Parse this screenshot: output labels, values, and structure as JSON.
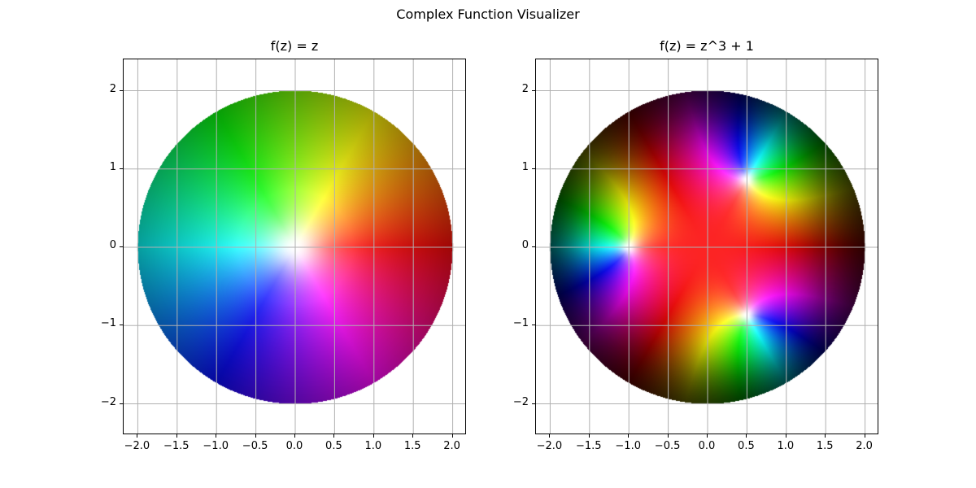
{
  "figure": {
    "suptitle": "Complex Function Visualizer"
  },
  "chart_data": [
    {
      "type": "heatmap",
      "title": "f(z) = z",
      "function": "z",
      "domain": "disk |z| <= 2",
      "coloring": "domain coloring: hue = arg f(z), brightness decreases with |f(z)|",
      "xlim": [
        -2.18,
        2.18
      ],
      "ylim": [
        -2.4,
        2.4
      ],
      "xticks": [
        -2.0,
        -1.5,
        -1.0,
        -0.5,
        0.0,
        0.5,
        1.0,
        1.5,
        2.0
      ],
      "xtick_labels": [
        "−2.0",
        "−1.5",
        "−1.0",
        "−0.5",
        "0.0",
        "0.5",
        "1.0",
        "1.5",
        "2.0"
      ],
      "yticks": [
        -2,
        -1,
        0,
        1,
        2
      ],
      "ytick_labels": [
        "−2",
        "−1",
        "0",
        "1",
        "2"
      ],
      "grid": true
    },
    {
      "type": "heatmap",
      "title": "f(z) = z^3 + 1",
      "function": "z^3 + 1",
      "domain": "disk |z| <= 2",
      "coloring": "domain coloring: hue = arg f(z), brightness decreases with |f(z)|",
      "xlim": [
        -2.18,
        2.18
      ],
      "ylim": [
        -2.4,
        2.4
      ],
      "xticks": [
        -2.0,
        -1.5,
        -1.0,
        -0.5,
        0.0,
        0.5,
        1.0,
        1.5,
        2.0
      ],
      "xtick_labels": [
        "−2.0",
        "−1.5",
        "−1.0",
        "−0.5",
        "0.0",
        "0.5",
        "1.0",
        "1.5",
        "2.0"
      ],
      "yticks": [
        -2,
        -1,
        0,
        1,
        2
      ],
      "ytick_labels": [
        "−2",
        "−1",
        "0",
        "1",
        "2"
      ],
      "grid": true
    }
  ]
}
